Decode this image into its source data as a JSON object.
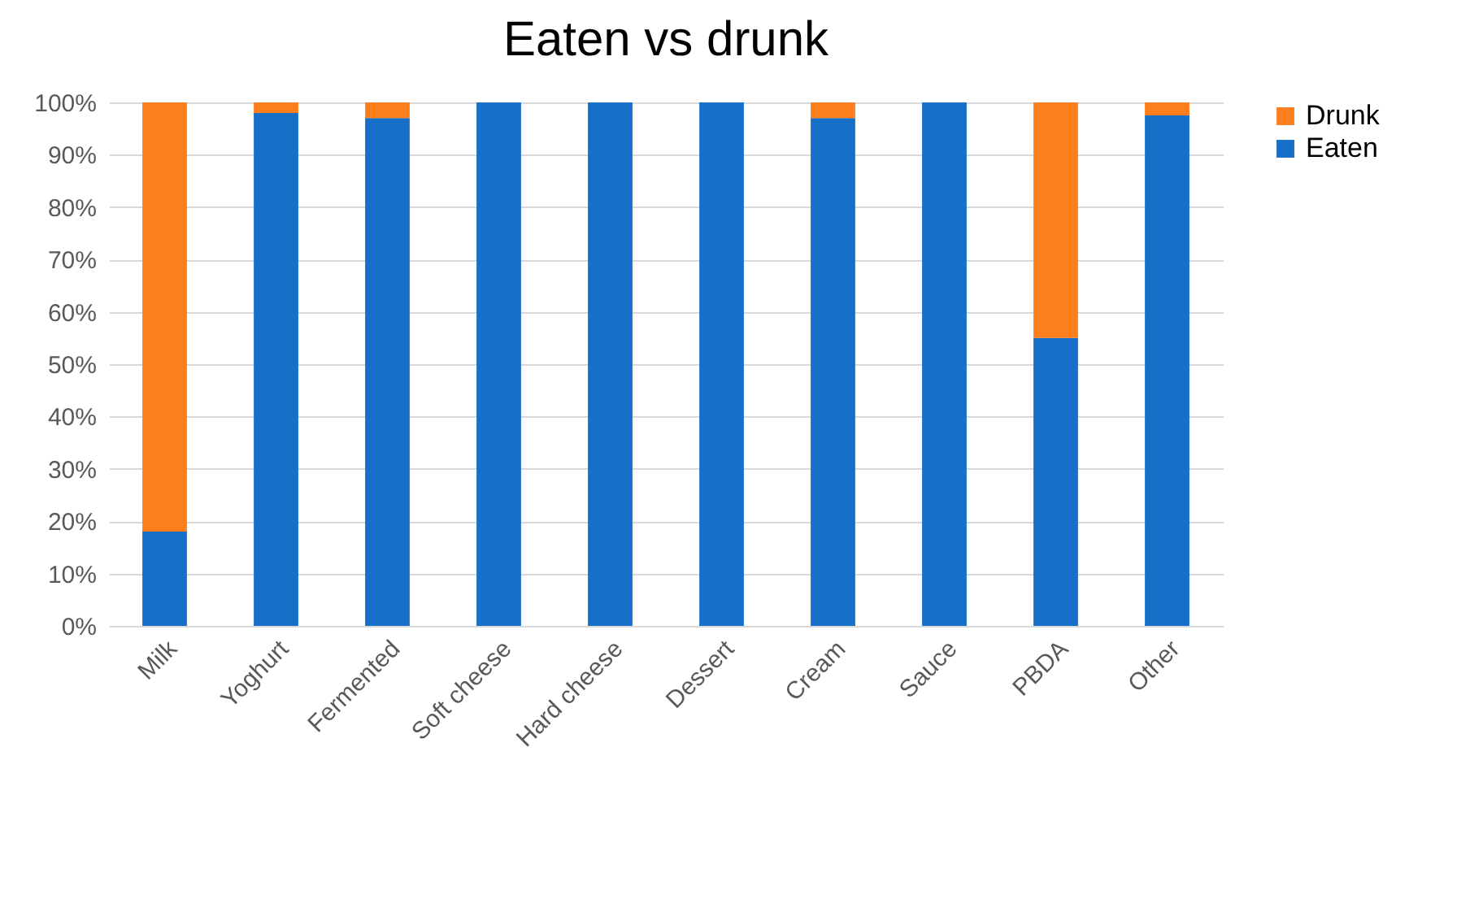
{
  "chart_data": {
    "type": "bar",
    "title": "Eaten vs drunk",
    "categories": [
      "Milk",
      "Yoghurt",
      "Fermented",
      "Soft cheese",
      "Hard cheese",
      "Dessert",
      "Cream",
      "Sauce",
      "PBDA",
      "Other"
    ],
    "stacked": true,
    "series": [
      {
        "name": "Eaten",
        "color": "#1670c8",
        "values": [
          18,
          98,
          97,
          100,
          100,
          100,
          97,
          100,
          55,
          97.5
        ]
      },
      {
        "name": "Drunk",
        "color": "#fd7e1d",
        "values": [
          82,
          2,
          3,
          0,
          0,
          0,
          3,
          0,
          45,
          2.5
        ]
      }
    ],
    "ylim": [
      0,
      100
    ],
    "yticks": [
      {
        "value": 0,
        "label": "0%"
      },
      {
        "value": 10,
        "label": "10%"
      },
      {
        "value": 20,
        "label": "20%"
      },
      {
        "value": 30,
        "label": "30%"
      },
      {
        "value": 40,
        "label": "40%"
      },
      {
        "value": 50,
        "label": "50%"
      },
      {
        "value": 60,
        "label": "60%"
      },
      {
        "value": 70,
        "label": "70%"
      },
      {
        "value": 80,
        "label": "80%"
      },
      {
        "value": 90,
        "label": "90%"
      },
      {
        "value": 100,
        "label": "100%"
      }
    ],
    "grid": "y",
    "legend": "right"
  }
}
